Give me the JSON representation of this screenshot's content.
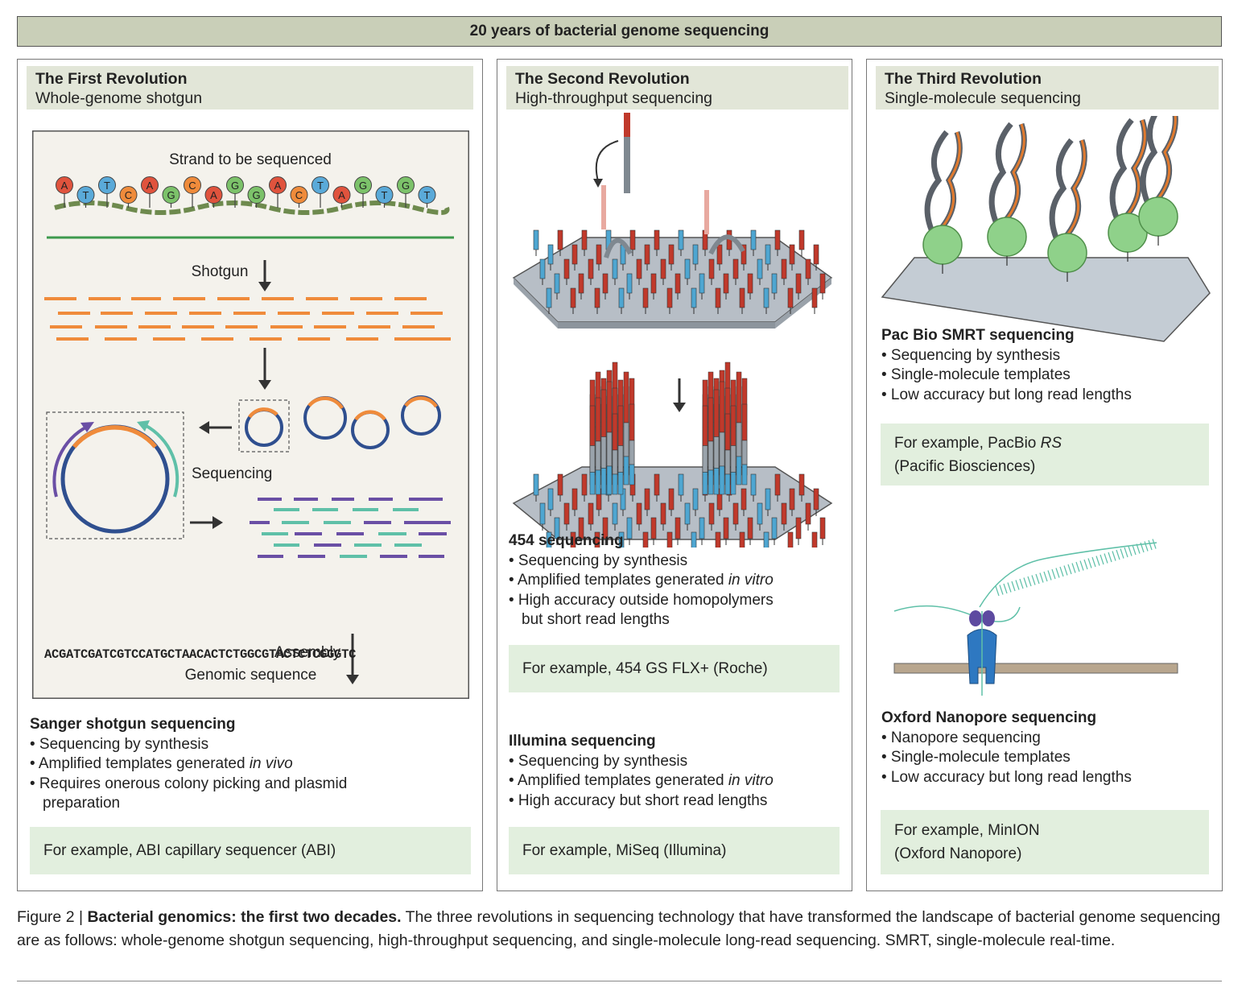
{
  "banner": "20 years of bacterial genome sequencing",
  "panel1": {
    "title": "The First Revolution",
    "subtitle": "Whole-genome shotgun",
    "strand_label": "Strand to be sequenced",
    "bases": [
      "A",
      "T",
      "T",
      "C",
      "A",
      "G",
      "C",
      "A",
      "G",
      "G",
      "A",
      "C",
      "T",
      "A",
      "G",
      "T",
      "G",
      "T"
    ],
    "shotgun_label": "Shotgun",
    "sequencing_label": "Sequencing",
    "assembly_label": "Assembly",
    "sequence": "ACGATCGATCGTCCATGCTAACACTCTGGCGTACTCTCGGGTC",
    "genomic_label": "Genomic sequence",
    "method_title": "Sanger shotgun sequencing",
    "bullets": [
      "• Sequencing by synthesis",
      "• Amplified templates generated ",
      "• Requires onerous colony picking and plasmid",
      "preparation"
    ],
    "bullet2_italic": "in vivo",
    "example": "For example, ABI capillary sequencer (ABI)"
  },
  "panel2": {
    "title": "The Second Revolution",
    "subtitle": "High-throughput sequencing",
    "m454_title": "454 sequencing",
    "m454_bullets": [
      "• Sequencing by synthesis",
      "• Amplified templates generated ",
      "• High accuracy outside homopolymers",
      "but short read lengths"
    ],
    "italic_invitro": "in vitro",
    "m454_example": "For example, 454 GS FLX+ (Roche)",
    "illumina_title": "Illumina sequencing",
    "illumina_bullets": [
      "• Sequencing by synthesis",
      "• Amplified templates generated ",
      "• High accuracy but short read lengths"
    ],
    "illumina_example": "For example, MiSeq (Illumina)"
  },
  "panel3": {
    "title": "The Third Revolution",
    "subtitle": "Single-molecule sequencing",
    "pacbio_title": "Pac Bio SMRT sequencing",
    "pacbio_bullets": [
      "• Sequencing by synthesis",
      "• Single-molecule templates",
      "• Low accuracy but long read lengths"
    ],
    "pacbio_example_1": "For example, PacBio ",
    "pacbio_example_italic": "RS",
    "pacbio_example_2": "(Pacific Biosciences)",
    "nano_title": "Oxford Nanopore sequencing",
    "nano_bullets": [
      "• Nanopore sequencing",
      "• Single-molecule templates",
      "• Low accuracy but long read lengths"
    ],
    "nano_example_1": "For example, MinION",
    "nano_example_2": "(Oxford Nanopore)"
  },
  "caption": {
    "prefix": "Figure 2 | ",
    "bold": "Bacterial genomics: the first two decades.",
    "text": " The three revolutions in sequencing technology that have transformed the landscape of bacterial genome sequencing are as follows: whole-genome shotgun sequencing, high-throughput sequencing, and single-molecule long-read sequencing. SMRT, single-molecule real-time."
  },
  "colors": {
    "A": "#e0533d",
    "T": "#5aaad9",
    "C": "#ef8b3b",
    "G": "#7cc26a",
    "orange": "#ef8b3b",
    "teal": "#5fc0a8",
    "purple": "#6a4fa5",
    "blue": "#2f4f8f",
    "green_line": "#3d9a4d",
    "red_strand": "#c0392b",
    "blue_strand": "#4ea6d1"
  }
}
